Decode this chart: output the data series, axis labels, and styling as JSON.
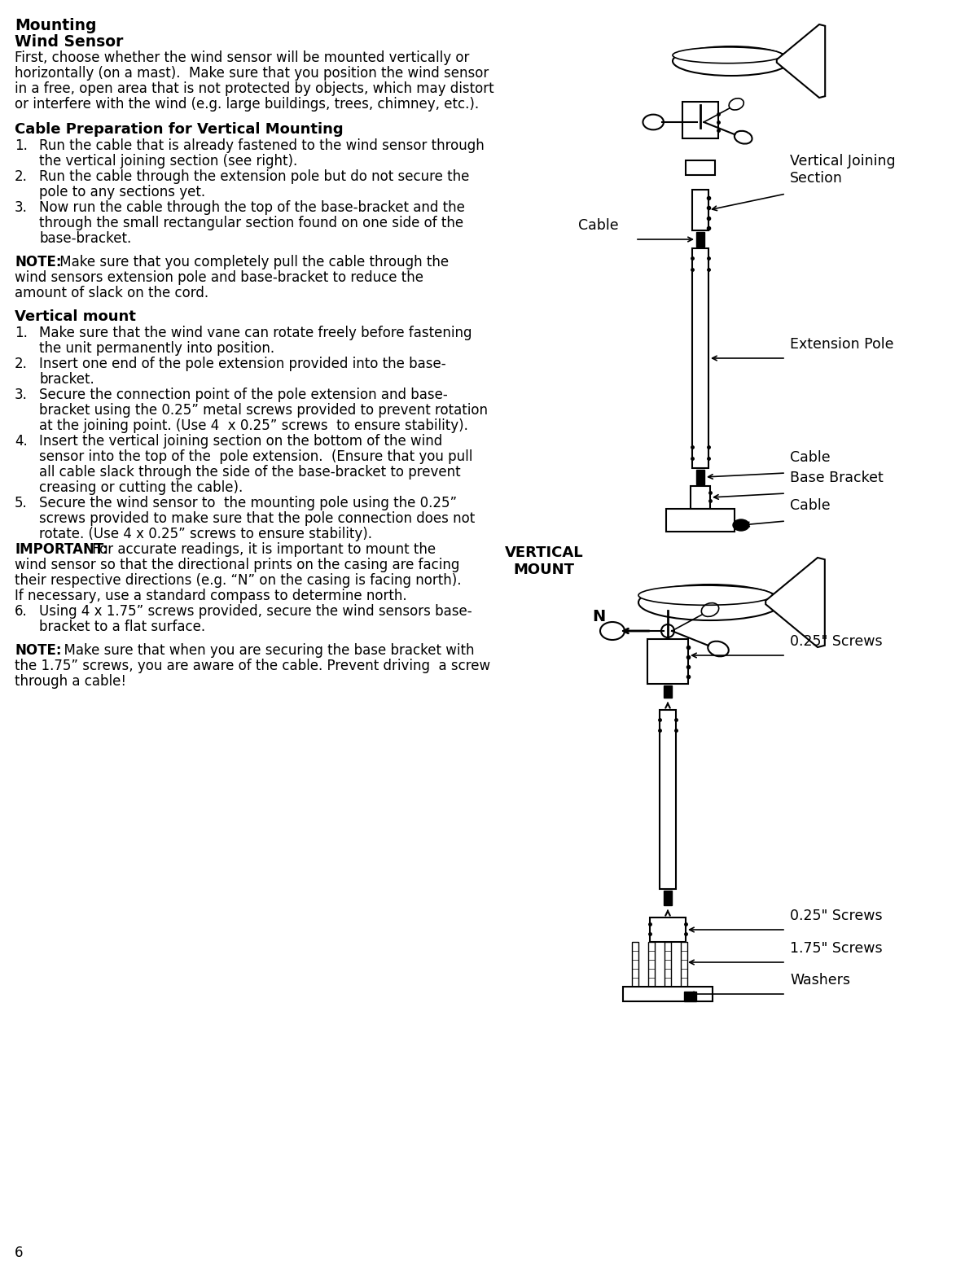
{
  "bg_color": "#ffffff",
  "text_color": "#000000",
  "title1": "Mounting",
  "title2": "Wind Sensor",
  "para1_lines": [
    "First, choose whether the wind sensor will be mounted vertically or",
    "horizontally (on a mast).  Make sure that you position the wind sensor",
    "in a free, open area that is not protected by objects, which may distort",
    "or interfere with the wind (e.g. large buildings, trees, chimney, etc.)."
  ],
  "section1_title": "Cable Preparation for Vertical Mounting",
  "section1_items": [
    [
      "Run the cable that is already fastened to the wind sensor through",
      "the vertical joining section (see right)."
    ],
    [
      "Run the cable through the extension pole but do not secure the",
      "pole to any sections yet."
    ],
    [
      "Now run the cable through the top of the base-bracket and the",
      "through the small rectangular section found on one side of the",
      "base-bracket."
    ]
  ],
  "note1_bold": "NOTE:",
  "note1_rest": " Make sure that you completely pull the cable through the",
  "note1_cont": [
    "wind sensors extension pole and base-bracket to reduce the",
    "amount of slack on the cord."
  ],
  "section2_title": "Vertical mount",
  "section2_items": [
    [
      "Make sure that the wind vane can rotate freely before fastening",
      "the unit permanently into position."
    ],
    [
      "Insert one end of the pole extension provided into the base-",
      "bracket."
    ],
    [
      "Secure the connection point of the pole extension and base-",
      "bracket using the 0.25” metal screws provided to prevent rotation",
      "at the joining point. (Use 4  x 0.25” screws  to ensure stability)."
    ],
    [
      "Insert the vertical joining section on the bottom of the wind",
      "sensor into the top of the  pole extension.  (Ensure that you pull",
      "all cable slack through the side of the base-bracket to prevent",
      "creasing or cutting the cable)."
    ],
    [
      "Secure the wind sensor to  the mounting pole using the 0.25”",
      "screws provided to make sure that the pole connection does not",
      "rotate. (Use 4 x 0.25” screws to ensure stability)."
    ]
  ],
  "important_bold": "IMPORTANT:",
  "important_rest": " For accurate readings, it is important to mount the",
  "important_cont": [
    "wind sensor so that the directional prints on the casing are facing",
    "their respective directions (e.g. “N” on the casing is facing north).",
    "If necessary, use a standard compass to determine north."
  ],
  "item6_lines": [
    "Using 4 x 1.75” screws provided, secure the wind sensors base-",
    "bracket to a flat surface."
  ],
  "note2_bold": "NOTE:",
  "note2_rest": "  Make sure that when you are securing the base bracket with",
  "note2_cont": [
    "the 1.75” screws, you are aware of the cable. Prevent driving  a screw",
    "through a cable!"
  ],
  "page_number": "6",
  "lbl_vjs": "Vertical Joining\nSection",
  "lbl_cable_top": "Cable",
  "lbl_ext_pole": "Extension Pole",
  "lbl_cable_mid": "Cable",
  "lbl_base_bracket": "Base Bracket",
  "lbl_cable_bot": "Cable",
  "lbl_screws_025a": "0.25\" Screws",
  "lbl_screws_025b": "0.25\" Screws",
  "lbl_screws_175": "1.75\" Screws",
  "lbl_washers": "Washers",
  "lbl_vertical_mount": "VERTICAL\nMOUNT",
  "lbl_N": "N"
}
